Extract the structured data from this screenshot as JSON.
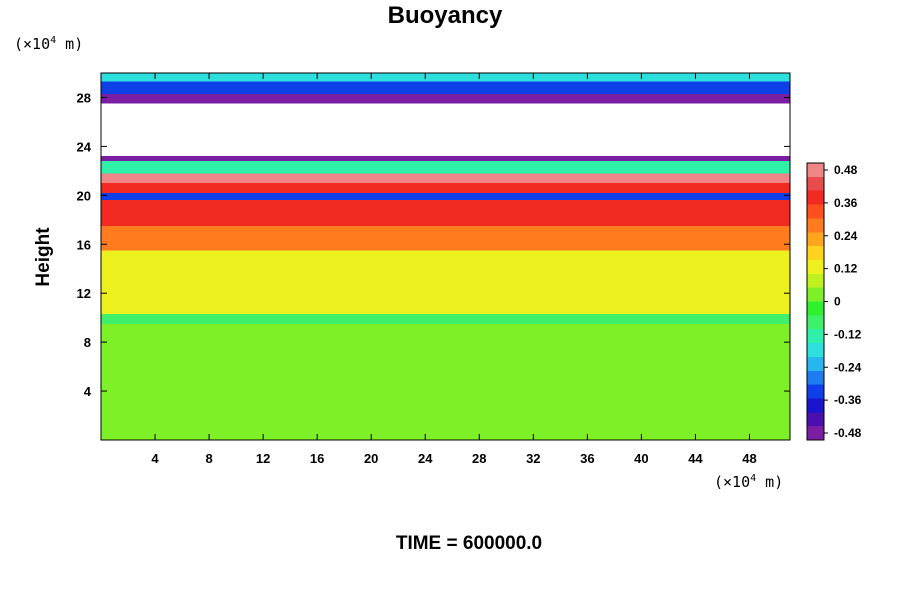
{
  "chart_data": {
    "type": "heatmap",
    "title": "Buoyancy",
    "ylabel": "Height",
    "x_unit": {
      "prefix": "(×10",
      "exponent": "4",
      "suffix": " m)"
    },
    "y_unit": {
      "prefix": "(×10",
      "exponent": "4",
      "suffix": " m)"
    },
    "xlim": [
      0,
      51
    ],
    "ylim": [
      0,
      30
    ],
    "x_ticks": [
      "4",
      "8",
      "12",
      "16",
      "20",
      "24",
      "28",
      "32",
      "36",
      "40",
      "44",
      "48"
    ],
    "y_ticks": [
      "4",
      "8",
      "12",
      "16",
      "20",
      "24",
      "28"
    ],
    "colorbar": {
      "range": [
        -0.48,
        0.48
      ],
      "tick_labels": [
        "0.48",
        "0.36",
        "0.24",
        "0.12",
        "0",
        "-0.12",
        "-0.24",
        "-0.36",
        "-0.48"
      ],
      "colors": [
        "#7a1fa2",
        "#4b0fb0",
        "#1a14cf",
        "#0f3fe8",
        "#1f7cf0",
        "#27b6ee",
        "#2ee0dd",
        "#2ef0a8",
        "#3ef06a",
        "#30f030",
        "#7ef028",
        "#bff020",
        "#ecf01c",
        "#ffd21e",
        "#ffa61e",
        "#ff7b1e",
        "#ff4f1e",
        "#f22a22",
        "#e84b4b",
        "#f08585"
      ]
    },
    "field_bands": [
      {
        "y_range": [
          0,
          9.5
        ],
        "value": 0.0
      },
      {
        "y_range": [
          9.5,
          10.3
        ],
        "value": -0.08
      },
      {
        "y_range": [
          10.3,
          15.5
        ],
        "value": 0.12
      },
      {
        "y_range": [
          15.5,
          17.5
        ],
        "value": 0.24
      },
      {
        "y_range": [
          17.5,
          19.6
        ],
        "value": 0.38
      },
      {
        "y_range": [
          19.6,
          20.2
        ],
        "value": -0.3
      },
      {
        "y_range": [
          20.2,
          21.0
        ],
        "value": 0.36
      },
      {
        "y_range": [
          21.0,
          21.8
        ],
        "value": 0.5
      },
      {
        "y_range": [
          21.8,
          22.8
        ],
        "value": -0.12
      },
      {
        "y_range": [
          22.8,
          23.2
        ],
        "value": -0.45
      },
      {
        "y_range": [
          23.2,
          27.5
        ],
        "value": null
      },
      {
        "y_range": [
          27.5,
          28.3
        ],
        "value": -0.45
      },
      {
        "y_range": [
          28.3,
          29.3
        ],
        "value": -0.3
      },
      {
        "y_range": [
          29.3,
          30.0
        ],
        "value": -0.18
      }
    ]
  },
  "footer": {
    "time_label": "TIME = 600000.0"
  }
}
